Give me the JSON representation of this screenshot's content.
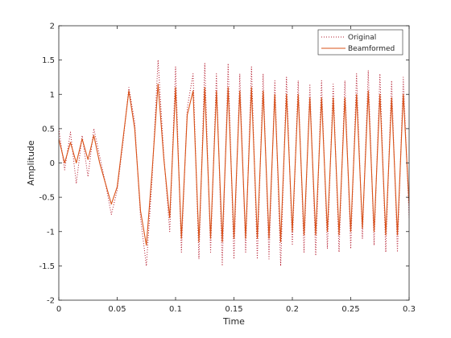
{
  "chart_data": {
    "type": "line",
    "title": "",
    "xlabel": "Time",
    "ylabel": "Amplitude",
    "xlim": [
      0,
      0.3
    ],
    "ylim": [
      -2,
      2
    ],
    "x_ticks": [
      0,
      0.05,
      0.1,
      0.15,
      0.2,
      0.25,
      0.3
    ],
    "x_tick_labels": [
      "0",
      "0.05",
      "0.1",
      "0.15",
      "0.2",
      "0.25",
      "0.3"
    ],
    "y_ticks": [
      -2,
      -1.5,
      -1,
      -0.5,
      0,
      0.5,
      1,
      1.5,
      2
    ],
    "y_tick_labels": [
      "-2",
      "-1.5",
      "-1",
      "-0.5",
      "0",
      "0.5",
      "1",
      "1.5",
      "2"
    ],
    "grid": false,
    "legend_position": "top-right",
    "series": [
      {
        "name": "Original",
        "style": "dotted",
        "color": "#b2182b",
        "x": [
          0,
          0.005,
          0.01,
          0.015,
          0.02,
          0.025,
          0.03,
          0.035,
          0.04,
          0.045,
          0.05,
          0.055,
          0.06,
          0.065,
          0.07,
          0.075,
          0.08,
          0.085,
          0.09,
          0.095,
          0.1,
          0.105,
          0.11,
          0.115,
          0.12,
          0.125,
          0.13,
          0.135,
          0.14,
          0.145,
          0.15,
          0.155,
          0.16,
          0.165,
          0.17,
          0.175,
          0.18,
          0.185,
          0.19,
          0.195,
          0.2,
          0.205,
          0.21,
          0.215,
          0.22,
          0.225,
          0.23,
          0.235,
          0.24,
          0.245,
          0.25,
          0.255,
          0.26,
          0.265,
          0.27,
          0.275,
          0.28,
          0.285,
          0.29,
          0.295,
          0.3
        ],
        "y": [
          0.5,
          -0.1,
          0.45,
          -0.3,
          0.4,
          -0.2,
          0.5,
          0.1,
          -0.3,
          -0.75,
          -0.4,
          0.3,
          1.1,
          0.6,
          -0.8,
          -1.5,
          -0.2,
          1.5,
          0.1,
          -1.0,
          1.4,
          -1.3,
          0.8,
          1.3,
          -1.4,
          1.45,
          -1.3,
          1.3,
          -1.5,
          1.45,
          -1.4,
          1.3,
          -1.3,
          1.4,
          -1.4,
          1.3,
          -1.4,
          1.2,
          -1.5,
          1.25,
          -1.2,
          1.2,
          -1.3,
          1.15,
          -1.35,
          1.2,
          -1.25,
          1.15,
          -1.3,
          1.2,
          -1.25,
          1.3,
          -1.1,
          1.35,
          -1.2,
          1.3,
          -1.3,
          1.2,
          -1.3,
          1.25,
          -0.8
        ]
      },
      {
        "name": "Beamformed",
        "style": "solid",
        "color": "#d95319",
        "x": [
          0,
          0.005,
          0.01,
          0.015,
          0.02,
          0.025,
          0.03,
          0.035,
          0.04,
          0.045,
          0.05,
          0.055,
          0.06,
          0.065,
          0.07,
          0.075,
          0.08,
          0.085,
          0.09,
          0.095,
          0.1,
          0.105,
          0.11,
          0.115,
          0.12,
          0.125,
          0.13,
          0.135,
          0.14,
          0.145,
          0.15,
          0.155,
          0.16,
          0.165,
          0.17,
          0.175,
          0.18,
          0.185,
          0.19,
          0.195,
          0.2,
          0.205,
          0.21,
          0.215,
          0.22,
          0.225,
          0.23,
          0.235,
          0.24,
          0.245,
          0.25,
          0.255,
          0.26,
          0.265,
          0.27,
          0.275,
          0.28,
          0.285,
          0.29,
          0.295,
          0.3
        ],
        "y": [
          0.35,
          0.0,
          0.3,
          0.0,
          0.35,
          0.05,
          0.4,
          0.0,
          -0.3,
          -0.6,
          -0.35,
          0.35,
          1.05,
          0.5,
          -0.7,
          -1.2,
          -0.1,
          1.15,
          0.05,
          -0.8,
          1.1,
          -1.1,
          0.7,
          1.05,
          -1.15,
          1.1,
          -1.1,
          1.05,
          -1.15,
          1.1,
          -1.1,
          1.05,
          -1.1,
          1.1,
          -1.1,
          1.05,
          -1.1,
          1.0,
          -1.15,
          1.0,
          -1.0,
          1.0,
          -1.05,
          0.95,
          -1.05,
          0.95,
          -1.0,
          0.95,
          -1.05,
          0.95,
          -1.0,
          1.0,
          -0.95,
          1.05,
          -1.0,
          1.0,
          -1.05,
          0.95,
          -1.05,
          1.0,
          -0.6
        ]
      }
    ]
  }
}
